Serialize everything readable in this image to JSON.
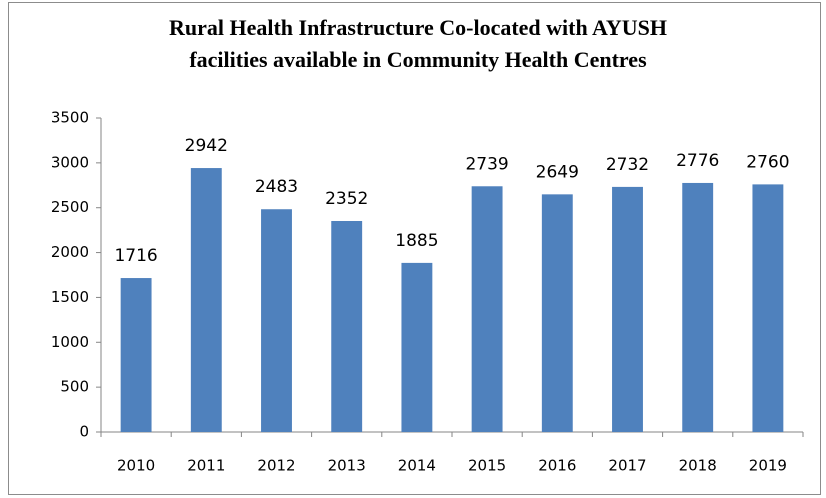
{
  "chart_data": {
    "type": "bar",
    "title": [
      "Rural Health Infrastructure Co-located with AYUSH",
      "facilities available in Community Health Centres"
    ],
    "categories": [
      "2010",
      "2011",
      "2012",
      "2013",
      "2014",
      "2015",
      "2016",
      "2017",
      "2018",
      "2019"
    ],
    "values": [
      1716,
      2942,
      2483,
      2352,
      1885,
      2739,
      2649,
      2732,
      2776,
      2760
    ],
    "color": "#4f81bd",
    "ylim": [
      0,
      3500
    ],
    "yticks": [
      0,
      500,
      1000,
      1500,
      2000,
      2500,
      3000,
      3500
    ],
    "grid": false
  }
}
